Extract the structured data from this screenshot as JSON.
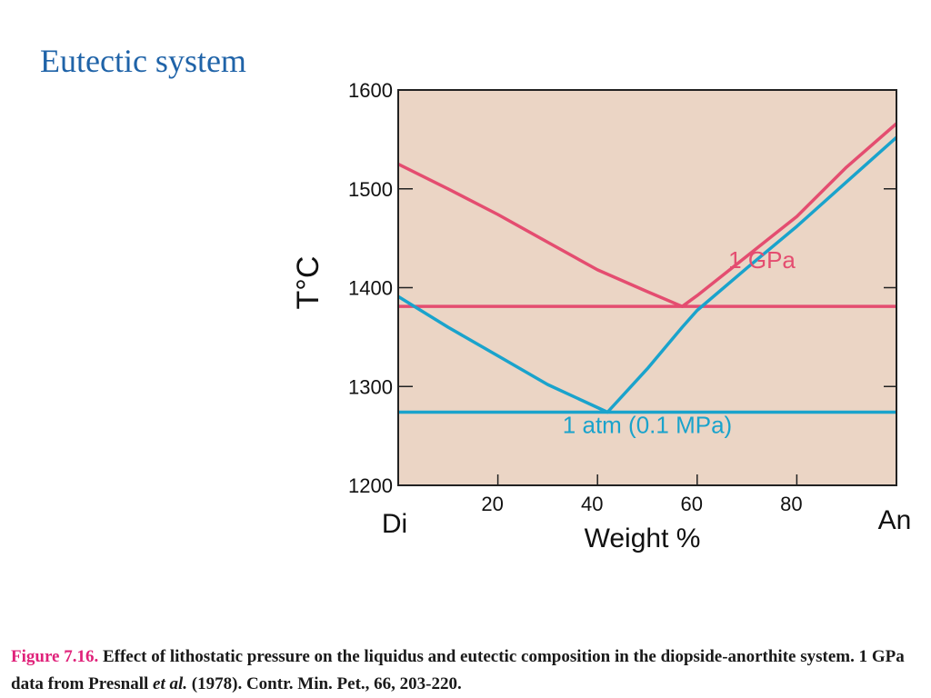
{
  "slide": {
    "title": "Eutectic system"
  },
  "chart_data": {
    "type": "line",
    "title": "",
    "xlabel": "Weight %",
    "ylabel": "T°C",
    "xlim": [
      0,
      100
    ],
    "ylim": [
      1200,
      1600
    ],
    "x_ticks": [
      20,
      40,
      60,
      80
    ],
    "y_ticks": [
      1200,
      1300,
      1400,
      1500,
      1600
    ],
    "x_end_labels": {
      "left": "Di",
      "right": "An"
    },
    "background_color": "#ebd5c5",
    "series": [
      {
        "name": "1 GPa",
        "color": "#e44d70",
        "liquidus": [
          [
            0,
            1525
          ],
          [
            10,
            1500
          ],
          [
            20,
            1474
          ],
          [
            30,
            1446
          ],
          [
            40,
            1418
          ],
          [
            50,
            1396
          ],
          [
            57,
            1381
          ],
          [
            60,
            1392
          ],
          [
            70,
            1432
          ],
          [
            80,
            1472
          ],
          [
            90,
            1522
          ],
          [
            100,
            1566
          ]
        ],
        "eutectic_T": 1381,
        "eutectic_x": 57,
        "label": "1 GPa",
        "label_position": "above eutectic, right"
      },
      {
        "name": "1 atm (0.1 MPa)",
        "color": "#1aa3cc",
        "liquidus": [
          [
            0,
            1391
          ],
          [
            10,
            1360
          ],
          [
            20,
            1331
          ],
          [
            30,
            1302
          ],
          [
            42,
            1274
          ],
          [
            50,
            1318
          ],
          [
            57,
            1360
          ],
          [
            60,
            1377
          ],
          [
            70,
            1420
          ],
          [
            80,
            1462
          ],
          [
            90,
            1507
          ],
          [
            100,
            1552
          ]
        ],
        "eutectic_T": 1274,
        "eutectic_x": 42,
        "label": "1 atm (0.1 MPa)",
        "label_position": "below eutectic"
      }
    ]
  },
  "caption": {
    "figure_label": "Figure 7.16.",
    "text_part1": " Effect of lithostatic pressure on the liquidus and eutectic composition in the diopside-anorthite system. 1 GPa data from Presnall ",
    "text_italic": "et al.",
    "text_part2": " (1978). Contr. Min. Pet., 66, 203-220."
  }
}
